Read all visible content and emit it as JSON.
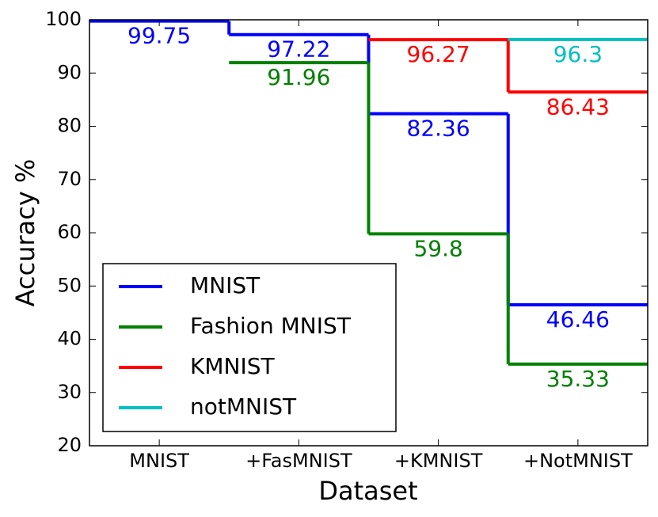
{
  "chart_data": {
    "type": "step",
    "x_label": "Dataset",
    "y_label": "Accuracy %",
    "categories": [
      "MNIST",
      "+FasMNIST",
      "+KMNIST",
      "+NotMNIST"
    ],
    "series": [
      {
        "name": "MNIST",
        "color": "#0000ff",
        "values": [
          99.75,
          97.22,
          82.36,
          46.46
        ]
      },
      {
        "name": "Fashion MNIST",
        "color": "#008000",
        "values": [
          null,
          91.96,
          59.8,
          35.33
        ]
      },
      {
        "name": "KMNIST",
        "color": "#ff0000",
        "values": [
          null,
          null,
          96.27,
          86.43
        ]
      },
      {
        "name": "notMNIST",
        "color": "#00bfbf",
        "values": [
          null,
          null,
          null,
          96.3
        ]
      }
    ],
    "ylim": [
      20,
      100
    ],
    "yticks": [
      20,
      30,
      40,
      50,
      60,
      70,
      80,
      90,
      100
    ],
    "legend": "lower left",
    "grid": false
  }
}
